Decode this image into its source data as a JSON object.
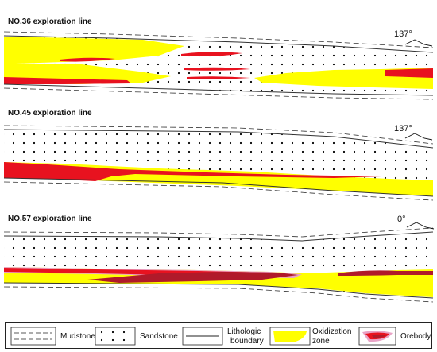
{
  "sections": [
    {
      "title": "NO.36 exploration line",
      "angle": "137°"
    },
    {
      "title": "NO.45 exploration line",
      "angle": "137°"
    },
    {
      "title": "NO.57 exploration line",
      "angle": "0°"
    }
  ],
  "legend": {
    "mudstone": "Mudstone",
    "sandstone": "Sandstone",
    "lithologic_line1": "Lithologic",
    "lithologic_line2": "boundary",
    "oxidization_line1": "Oxidization",
    "oxidization_line2": "zone",
    "orebody": "Orebody"
  },
  "colors": {
    "oxidization": "#ffff00",
    "orebody": "#e8121f",
    "orebody_dark": "#b01a2a",
    "orebody_halo": "#e9a3c6"
  }
}
